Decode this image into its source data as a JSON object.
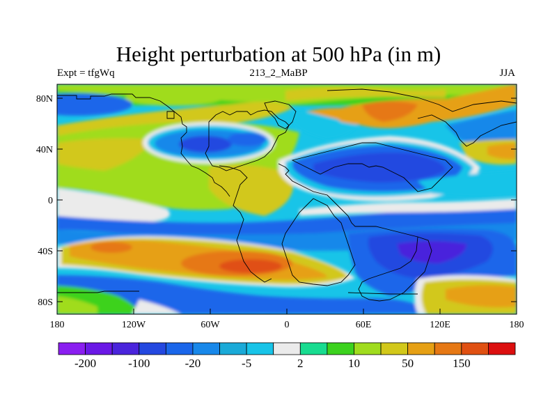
{
  "header": {
    "title": "Height perturbation at 500 hPa (in m)",
    "left": "Expt = tfgWq",
    "center": "213_2_MaBP",
    "right": "JJA"
  },
  "axes": {
    "y_ticks": [
      "80N",
      "40N",
      "0",
      "40S",
      "80S"
    ],
    "x_ticks": [
      "180",
      "120W",
      "60W",
      "0",
      "60E",
      "120E",
      "180"
    ]
  },
  "colorbar": {
    "colors": [
      "#8a1ef0",
      "#6a18e6",
      "#4a24dc",
      "#2448e0",
      "#1a66ea",
      "#1888ea",
      "#1aaad8",
      "#18c4e8",
      "#ebebeb",
      "#18dc90",
      "#3cd21e",
      "#a0dc1e",
      "#d2c81a",
      "#e6a014",
      "#e67814",
      "#e05012",
      "#dc0f0f"
    ],
    "labels": [
      "-200",
      "-100",
      "-20",
      "-5",
      "2",
      "10",
      "50",
      "150"
    ]
  }
}
